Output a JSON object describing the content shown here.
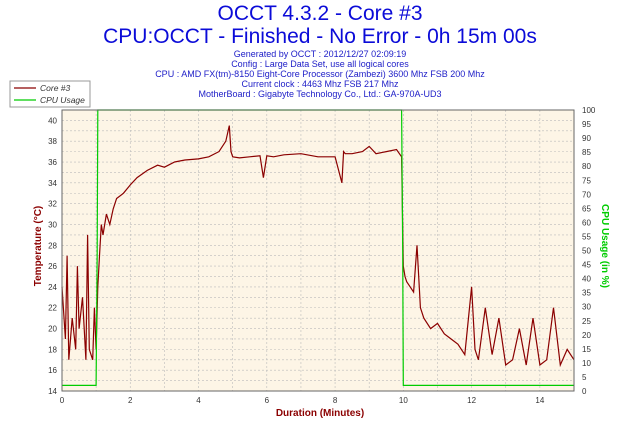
{
  "header": {
    "title": "OCCT 4.3.2 - Core #3",
    "subtitle": "CPU:OCCT - Finished - No Error - 0h 15m 00s",
    "info_lines": [
      "Generated by OCCT : 2012/12/27 02:09:19",
      "Config : Large Data Set, use all logical cores",
      "CPU : AMD FX(tm)-8150 Eight-Core Processor (Zambezi) 3600 Mhz FSB 200 Mhz",
      "Current clock : 4463 Mhz FSB 217 Mhz",
      "MotherBoard : Gigabyte Technology Co., Ltd.: GA-970A-UD3"
    ]
  },
  "colors": {
    "core": "#8b0000",
    "cpu_usage": "#00cc00",
    "plot_bg": "#fdf5e6",
    "grid": "#bbbbbb"
  },
  "chart_data": {
    "type": "line",
    "xlabel": "Duration (Minutes)",
    "ylabel_left": "Temperature (°C)",
    "ylabel_right": "CPU Usage (in %)",
    "xlim": [
      0,
      15
    ],
    "ylim_left": [
      14,
      41
    ],
    "ylim_right": [
      0,
      100
    ],
    "x_ticks": [
      0,
      2,
      4,
      6,
      8,
      10,
      12,
      14
    ],
    "y_ticks_left": [
      14,
      15,
      16,
      17,
      18,
      19,
      20,
      21,
      22,
      23,
      24,
      25,
      26,
      27,
      28,
      29,
      30,
      31,
      32,
      33,
      34,
      35,
      36,
      37,
      38,
      39,
      40
    ],
    "y_ticks_right": [
      0,
      5,
      10,
      15,
      20,
      25,
      30,
      35,
      40,
      45,
      50,
      55,
      60,
      65,
      70,
      75,
      80,
      85,
      90,
      95,
      100
    ],
    "grid": true,
    "legend_position": "top-left",
    "series": [
      {
        "name": "Core #3",
        "axis": "left",
        "x": [
          0,
          0.1,
          0.15,
          0.2,
          0.3,
          0.4,
          0.45,
          0.5,
          0.6,
          0.7,
          0.75,
          0.8,
          0.9,
          0.95,
          1.0,
          1.05,
          1.1,
          1.15,
          1.2,
          1.3,
          1.4,
          1.5,
          1.6,
          1.8,
          2.0,
          2.2,
          2.5,
          2.8,
          3.0,
          3.3,
          3.6,
          4.0,
          4.3,
          4.6,
          4.8,
          4.9,
          4.95,
          5.0,
          5.2,
          5.5,
          5.8,
          5.9,
          6.0,
          6.2,
          6.5,
          7.0,
          7.5,
          8.0,
          8.2,
          8.25,
          8.3,
          8.5,
          8.8,
          9.0,
          9.2,
          9.5,
          9.8,
          9.95,
          10.0,
          10.05,
          10.1,
          10.2,
          10.3,
          10.4,
          10.5,
          10.6,
          10.8,
          11.0,
          11.2,
          11.4,
          11.6,
          11.8,
          12.0,
          12.1,
          12.2,
          12.4,
          12.6,
          12.8,
          13.0,
          13.2,
          13.4,
          13.6,
          13.8,
          14.0,
          14.2,
          14.4,
          14.6,
          14.8,
          15.0
        ],
        "values": [
          24,
          19,
          27,
          17,
          21,
          18,
          26,
          20,
          23,
          17,
          29,
          18,
          17,
          22,
          18,
          24,
          27,
          30,
          29,
          31,
          30,
          31.5,
          32.5,
          33,
          33.8,
          34.5,
          35.2,
          35.7,
          35.5,
          36,
          36.2,
          36.3,
          36.5,
          37,
          38,
          39.5,
          37,
          36.5,
          36.4,
          36.5,
          36.6,
          34.5,
          36.6,
          36.5,
          36.7,
          36.8,
          36.5,
          36.5,
          34,
          37,
          36.8,
          36.8,
          37,
          37.5,
          36.8,
          37,
          37.2,
          36.5,
          26,
          25,
          24.5,
          24,
          23.5,
          28,
          22,
          21,
          20,
          20.5,
          19.5,
          19,
          18.5,
          17.5,
          24,
          18,
          17,
          22,
          17.5,
          21,
          16.5,
          17,
          20,
          16.5,
          21,
          16.5,
          17,
          22,
          16.5,
          18,
          17
        ]
      },
      {
        "name": "CPU Usage",
        "axis": "right",
        "x": [
          0,
          0.5,
          1.0,
          1.03,
          1.05,
          2.0,
          4.0,
          6.0,
          8.0,
          9.5,
          9.95,
          9.98,
          10.0,
          11.0,
          12.0,
          13.0,
          14.0,
          15.0
        ],
        "values": [
          2,
          2,
          2,
          50,
          100,
          100,
          100,
          100,
          100,
          100,
          100,
          50,
          2,
          2,
          2,
          2,
          2,
          2
        ]
      }
    ]
  }
}
